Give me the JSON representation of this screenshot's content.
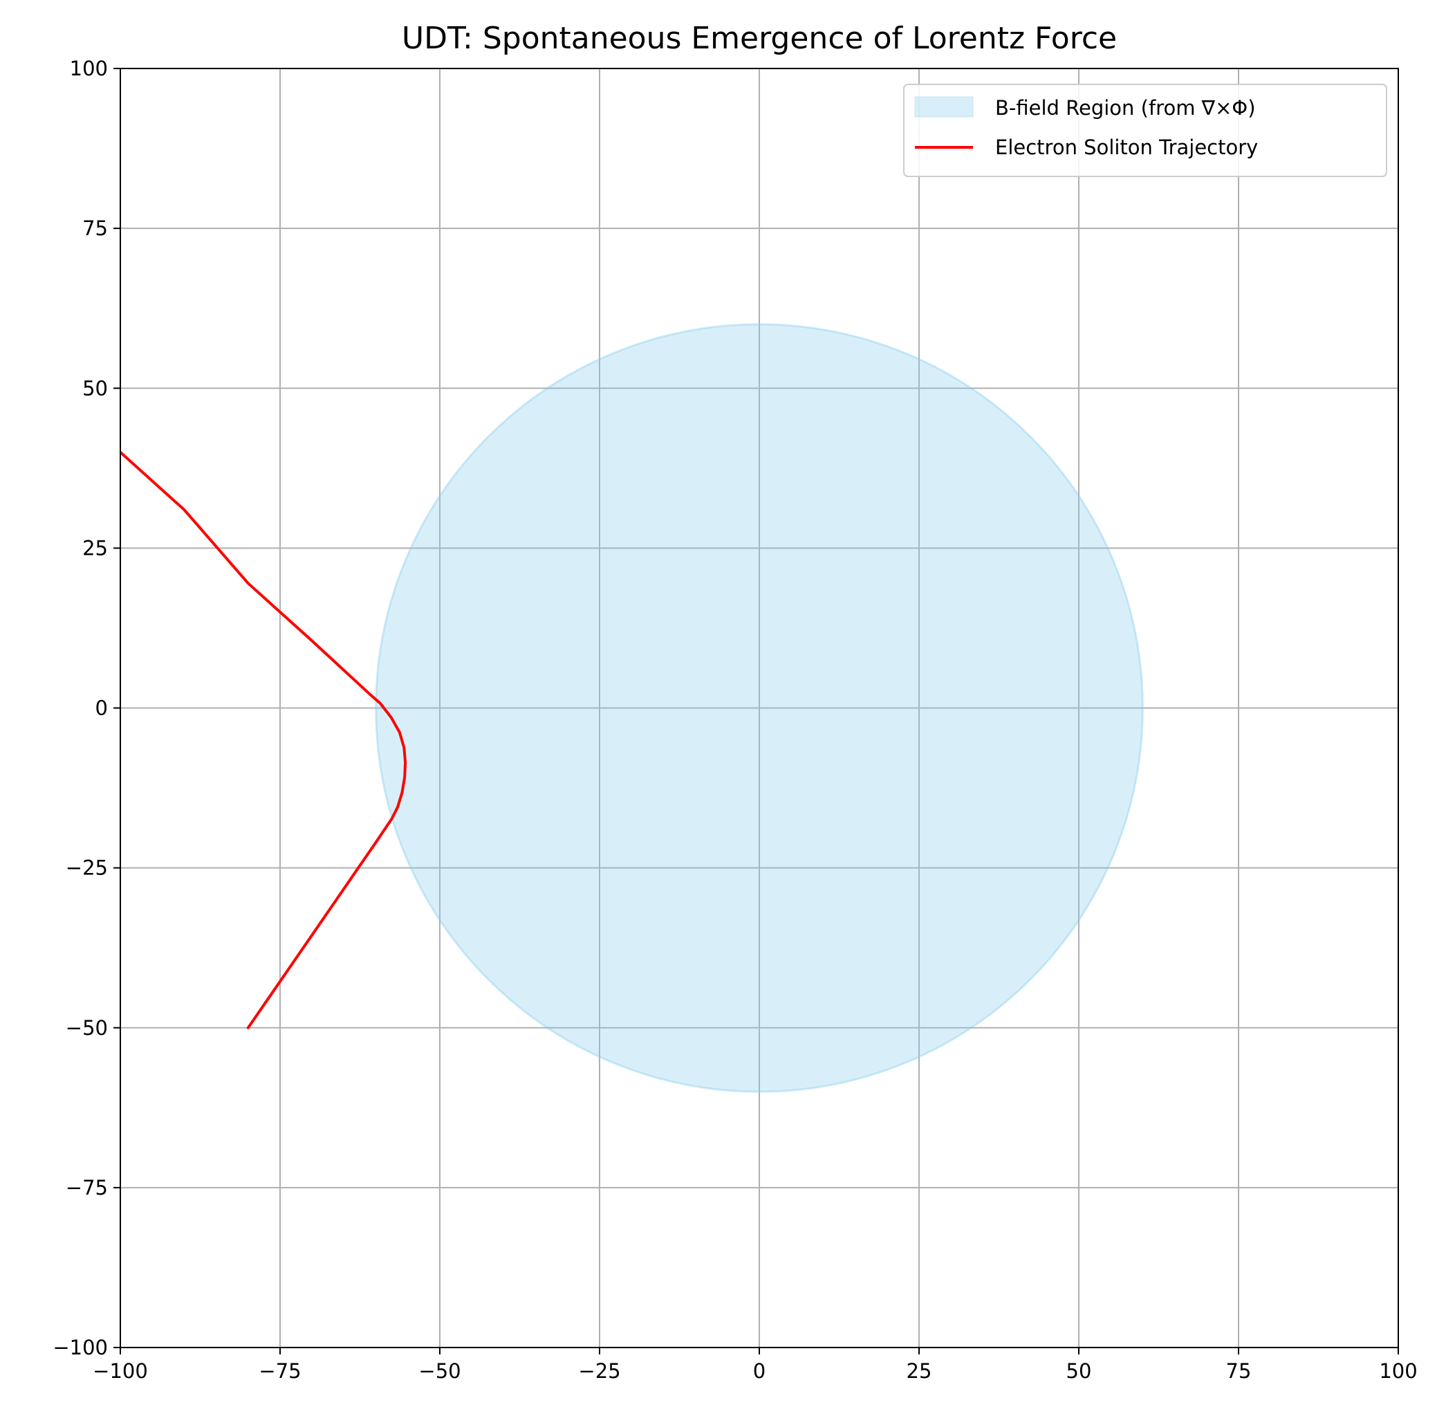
{
  "chart_data": {
    "type": "line",
    "title": "UDT: Spontaneous Emergence of Lorentz Force",
    "xlabel": "",
    "ylabel": "",
    "xlim": [
      -100,
      100
    ],
    "ylim": [
      -100,
      100
    ],
    "xticks": [
      -100,
      -75,
      -50,
      -25,
      0,
      25,
      50,
      75,
      100
    ],
    "yticks": [
      -100,
      -75,
      -50,
      -25,
      0,
      25,
      50,
      75,
      100
    ],
    "xtick_labels": [
      "−100",
      "−75",
      "−50",
      "−25",
      "0",
      "25",
      "50",
      "75",
      "100"
    ],
    "ytick_labels": [
      "−100",
      "−75",
      "−50",
      "−25",
      "0",
      "25",
      "50",
      "75",
      "100"
    ],
    "grid": true,
    "legend_position": "top-right",
    "region": {
      "name": "B-field Region (from ∇×Φ)",
      "shape": "circle",
      "center": [
        0,
        0
      ],
      "radius": 60,
      "color": "#87CEEB",
      "opacity": 0.32
    },
    "series": [
      {
        "name": "Electron Soliton Trajectory",
        "color": "#ff0000",
        "x": [
          -80,
          -70,
          -60,
          -57.5,
          -56.6,
          -55.9,
          -55.5,
          -55.4,
          -55.6,
          -56.3,
          -57.6,
          -59.3,
          -61,
          -70,
          -80,
          -90,
          -100
        ],
        "y": [
          -50,
          -35.5,
          -21,
          -17.3,
          -15.5,
          -13.2,
          -10.8,
          -8.5,
          -6.2,
          -3.8,
          -1.5,
          0.7,
          2.2,
          10.5,
          19.5,
          31,
          40
        ]
      }
    ]
  }
}
